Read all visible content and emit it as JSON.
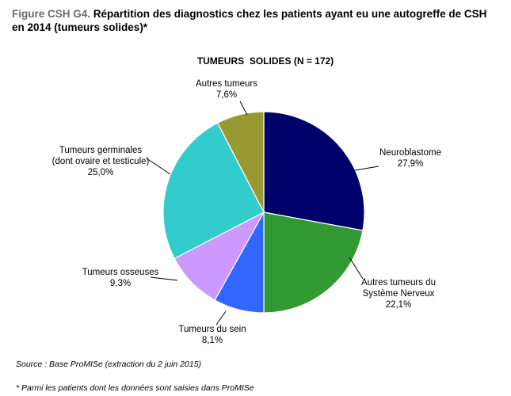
{
  "figure": {
    "prefix": "Figure CSH G4.",
    "title": " Répartition des diagnostics chez les patients ayant eu une autogreffe de CSH en 2014 (tumeurs solides)*"
  },
  "chart_data": {
    "type": "pie",
    "title": "TUMEURS  SOLIDES (N = 172)",
    "start": "12 o'clock",
    "direction": "clockwise",
    "slices": [
      {
        "label_lines": [
          "Neuroblastome"
        ],
        "percent_label": "27,9%",
        "value": 27.9,
        "color": "#00006b"
      },
      {
        "label_lines": [
          "Autres tumeurs du",
          "Système Nerveux"
        ],
        "percent_label": "22,1%",
        "value": 22.1,
        "color": "#339933"
      },
      {
        "label_lines": [
          "Tumeurs du sein"
        ],
        "percent_label": "8,1%",
        "value": 8.1,
        "color": "#3366ff"
      },
      {
        "label_lines": [
          "Tumeurs osseuses"
        ],
        "percent_label": "9,3%",
        "value": 9.3,
        "color": "#cc99ff"
      },
      {
        "label_lines": [
          "Tumeurs germinales",
          "(dont ovaire et testicule)"
        ],
        "percent_label": "25,0%",
        "value": 25.0,
        "color": "#33cccc"
      },
      {
        "label_lines": [
          "Autres tumeurs"
        ],
        "percent_label": "7,6%",
        "value": 7.6,
        "color": "#999933"
      }
    ]
  },
  "notes": {
    "source": "Source : Base ProMISe (extraction du 2 juin 2015)",
    "footnote": "* Parmi les patients dont les données sont saisies dans ProMISe"
  }
}
